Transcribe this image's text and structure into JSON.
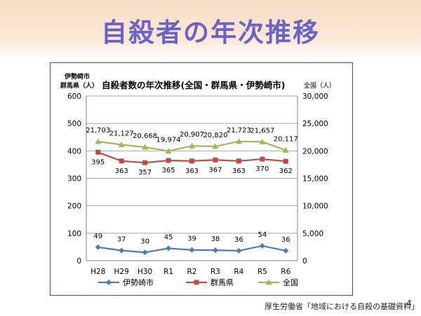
{
  "slide": {
    "title": "自殺者の年次推移",
    "source": "厚生労働省「地域における自殺の基礎資料」",
    "page_number": "4"
  },
  "chart_data": {
    "type": "line",
    "title": "自殺者数の年次推移(全国・群馬県・伊勢崎市)",
    "left_axis_label_line1": "伊勢崎市",
    "left_axis_label_line2": "群馬県（人）",
    "right_axis_label": "全国（人）",
    "categories": [
      "H28",
      "H29",
      "H30",
      "R1",
      "R2",
      "R3",
      "R4",
      "R5",
      "R6"
    ],
    "left_ylim": [
      0,
      600
    ],
    "left_ticks": [
      0,
      100,
      200,
      300,
      400,
      500,
      600
    ],
    "right_ylim": [
      0,
      30000
    ],
    "right_ticks": [
      "0",
      "5,000",
      "10,000",
      "15,000",
      "20,000",
      "25,000",
      "30,000"
    ],
    "grid": "horizontal",
    "legend_position": "bottom",
    "series": [
      {
        "name": "伊勢崎市",
        "axis": "left",
        "marker": "diamond",
        "color": "#4a7ebb",
        "values": [
          49,
          37,
          30,
          45,
          39,
          38,
          36,
          54,
          36
        ],
        "labels": [
          "49",
          "37",
          "30",
          "45",
          "39",
          "38",
          "36",
          "54",
          "36"
        ]
      },
      {
        "name": "群馬県",
        "axis": "left",
        "marker": "square",
        "color": "#be4b48",
        "values": [
          395,
          363,
          357,
          365,
          363,
          367,
          363,
          370,
          362
        ],
        "labels": [
          "395",
          "363",
          "357",
          "365",
          "363",
          "367",
          "363",
          "370",
          "362"
        ]
      },
      {
        "name": "全国",
        "axis": "right",
        "marker": "triangle",
        "color": "#9bbb59",
        "values": [
          21703,
          21127,
          20668,
          19974,
          20907,
          20820,
          21723,
          21657,
          20117
        ],
        "labels": [
          "21,703",
          "21,127",
          "20,668",
          "19,974",
          "20,907",
          "20,820",
          "21,723",
          "21,657",
          "20,117"
        ]
      }
    ]
  }
}
